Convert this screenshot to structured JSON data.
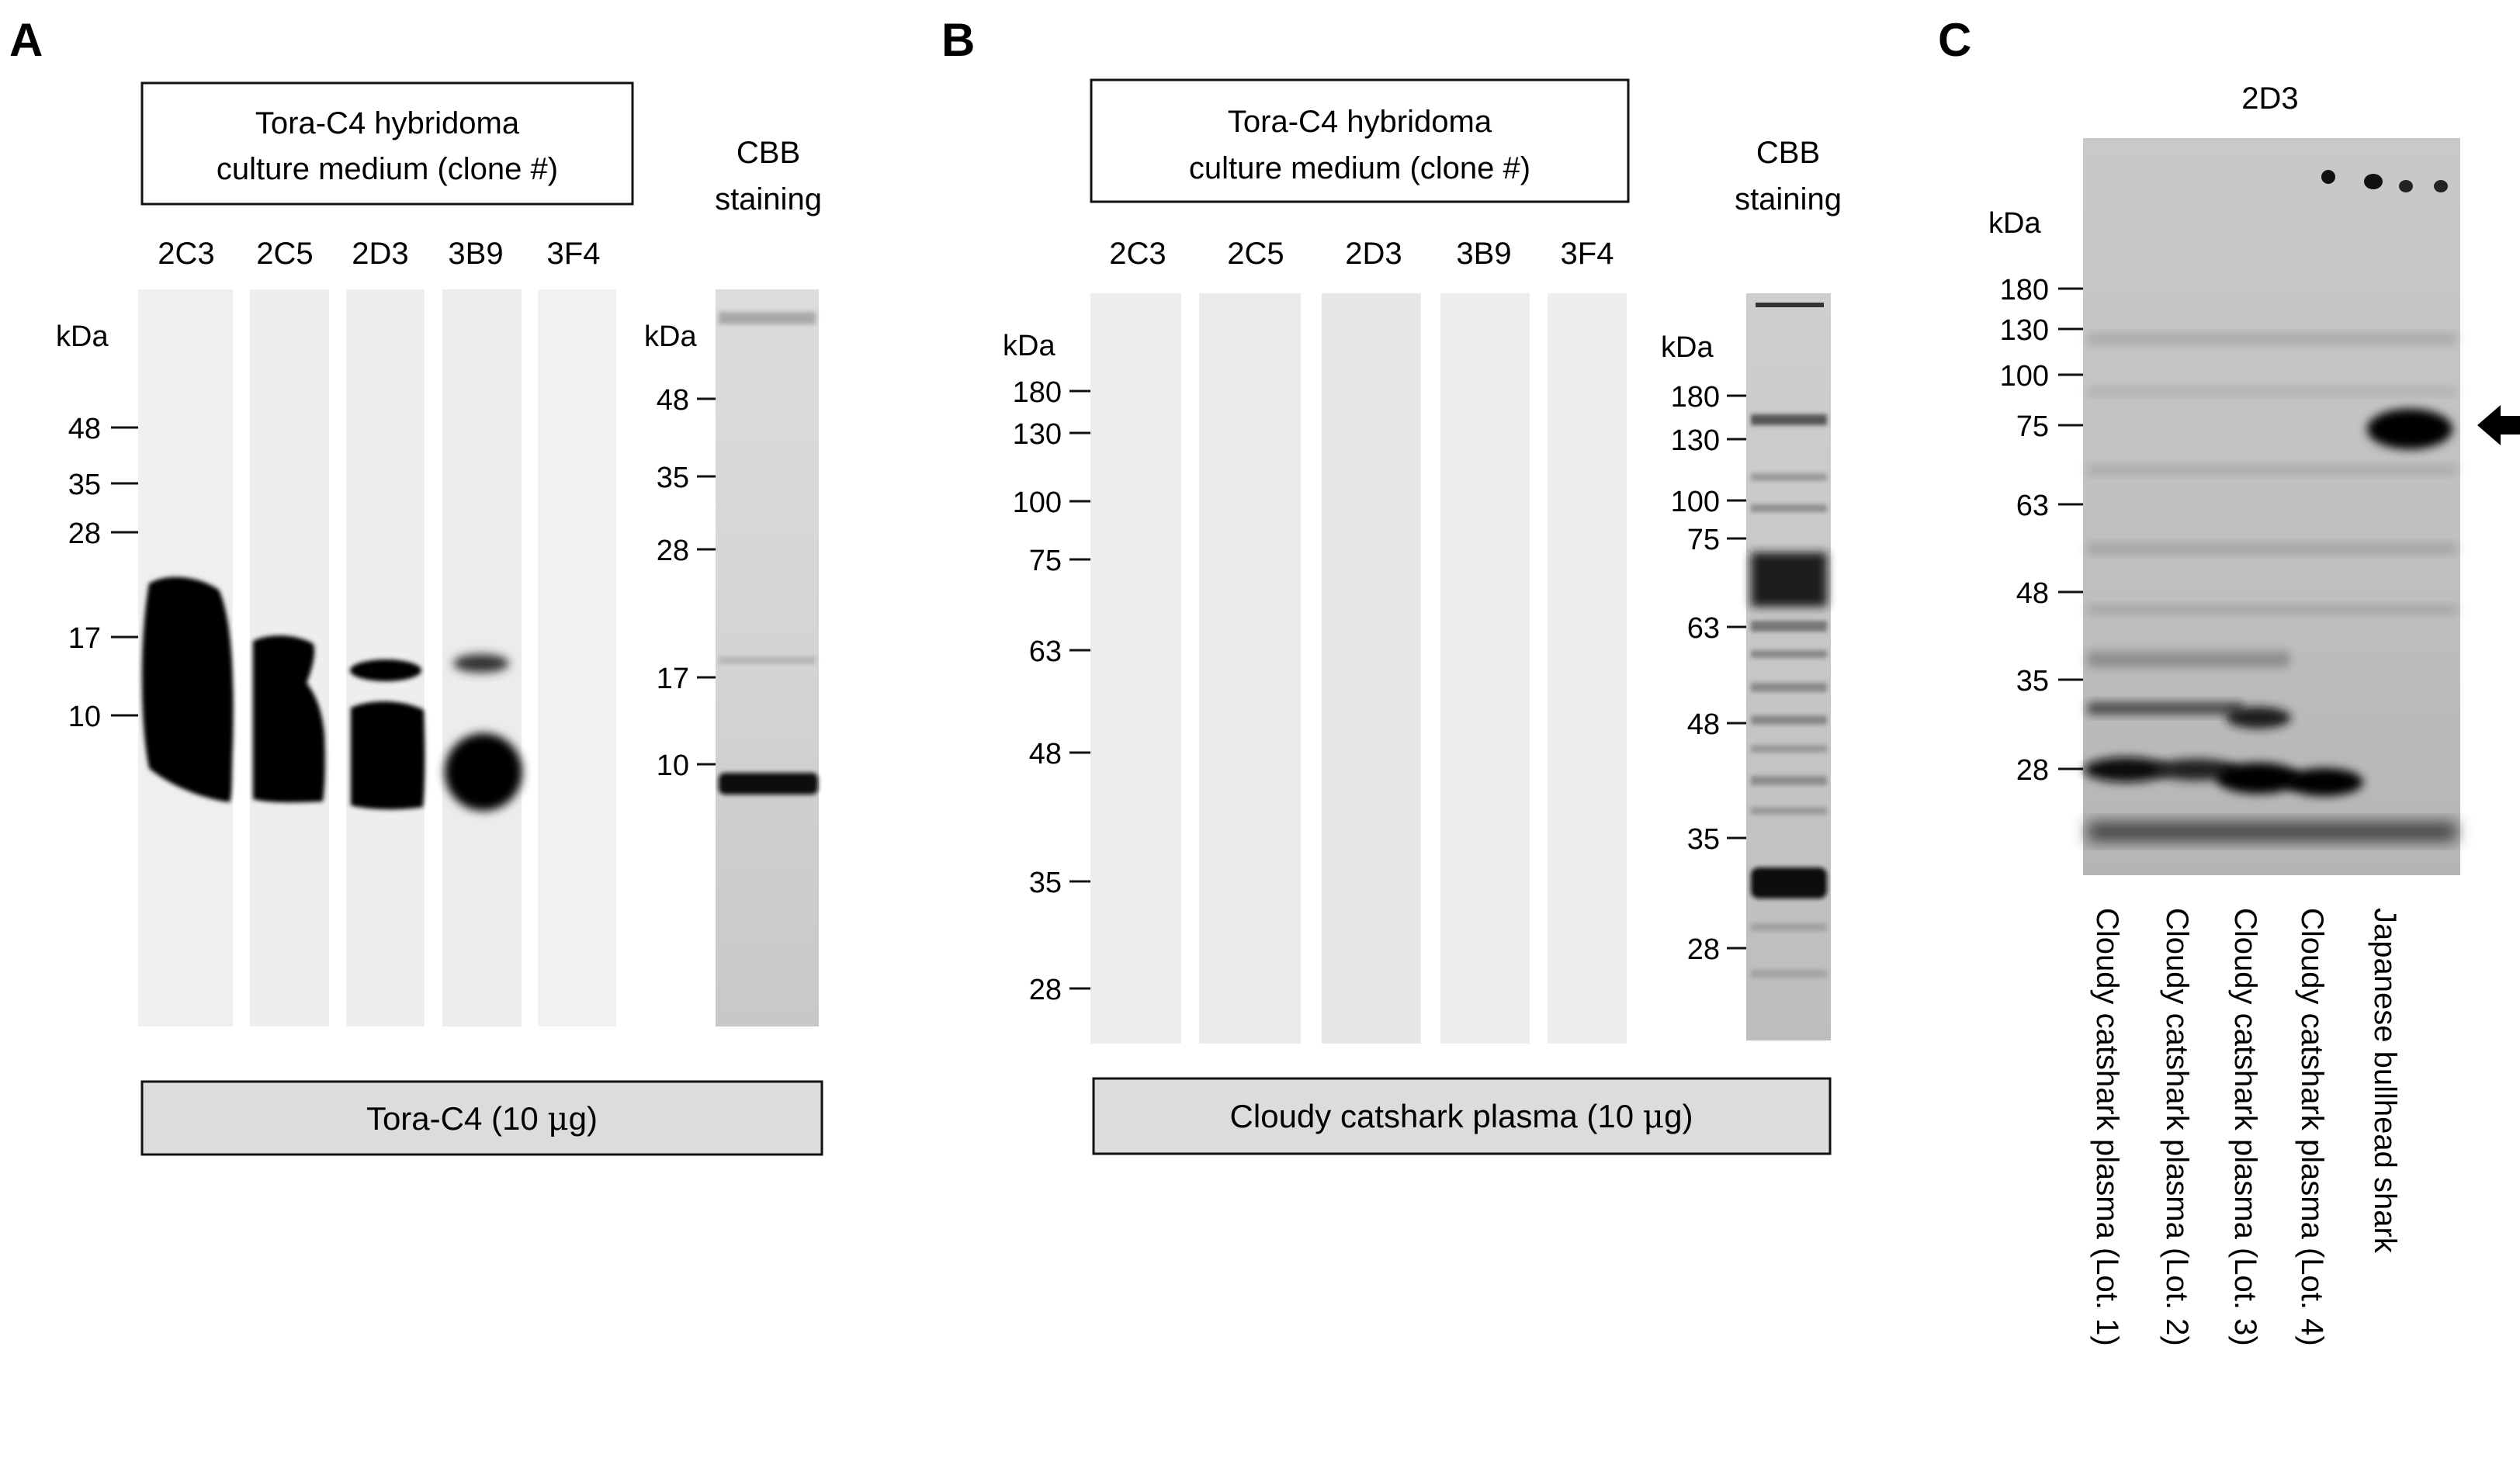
{
  "panelA": {
    "letter": "A",
    "box_title": [
      "Tora-C4 hybridoma",
      "culture medium (clone #)"
    ],
    "clones": [
      "2C3",
      "2C5",
      "2D3",
      "3B9",
      "3F4"
    ],
    "kda_label": "kDa",
    "markers": [
      "48",
      "35",
      "28",
      "17",
      "10"
    ],
    "cbb": {
      "title": [
        "CBB",
        "staining"
      ],
      "kda_label": "kDa",
      "markers": [
        "48",
        "35",
        "28",
        "17",
        "10"
      ]
    },
    "bottom_label_prefix": "Tora-C4 (10 ",
    "bottom_label_mu": "μ",
    "bottom_label_suffix": "g)"
  },
  "panelB": {
    "letter": "B",
    "box_title": [
      "Tora-C4 hybridoma",
      "culture medium (clone #)"
    ],
    "clones": [
      "2C3",
      "2C5",
      "2D3",
      "3B9",
      "3F4"
    ],
    "kda_label": "kDa",
    "markers": [
      "180",
      "130",
      "100",
      "75",
      "63",
      "48",
      "35",
      "28"
    ],
    "cbb": {
      "title": [
        "CBB",
        "staining"
      ],
      "kda_label": "kDa",
      "markers": [
        "180",
        "130",
        "100",
        "75",
        "63",
        "48",
        "35",
        "28"
      ]
    },
    "bottom_label_prefix": "Cloudy catshark plasma (10 ",
    "bottom_label_mu": "μ",
    "bottom_label_suffix": "g)"
  },
  "panelC": {
    "letter": "C",
    "antibody": "2D3",
    "kda_label": "kDa",
    "markers": [
      "180",
      "130",
      "100",
      "75",
      "63",
      "48",
      "35",
      "28"
    ],
    "lanes": [
      "Cloudy catshark plasma (Lot. 1)",
      "Cloudy catshark plasma (Lot. 2)",
      "Cloudy catshark plasma (Lot. 3)",
      "Cloudy catshark plasma (Lot. 4)",
      "Japanese bullhead shark"
    ]
  }
}
